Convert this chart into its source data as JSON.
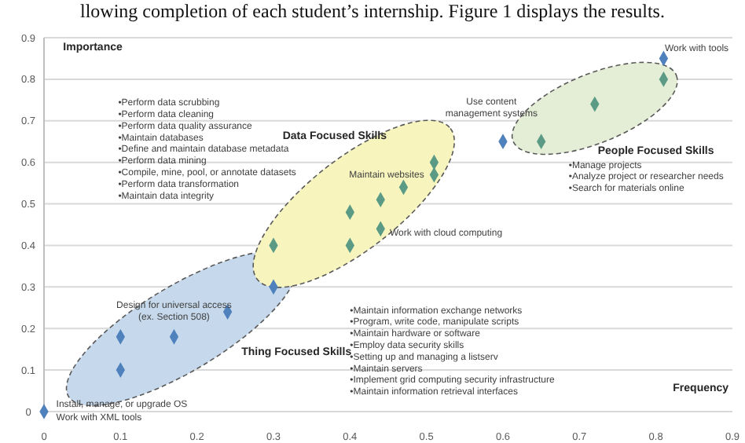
{
  "chart_data": {
    "type": "scatter",
    "xlabel": "Frequency",
    "ylabel": "Importance",
    "x": [
      0,
      0.1,
      0.1,
      0.17,
      0.24,
      0.3,
      0.6,
      0.81,
      0.3,
      0.4,
      0.4,
      0.44,
      0.44,
      0.47,
      0.51,
      0.51,
      0.65,
      0.72,
      0.81
    ],
    "values": [
      0,
      0.1,
      0.18,
      0.18,
      0.24,
      0.3,
      0.65,
      0.85,
      0.4,
      0.4,
      0.48,
      0.44,
      0.51,
      0.54,
      0.57,
      0.6,
      0.65,
      0.74,
      0.8
    ],
    "colors": [
      "#4f81bd",
      "#4f81bd",
      "#4f81bd",
      "#4f81bd",
      "#4f81bd",
      "#4f81bd",
      "#4f81bd",
      "#4f81bd",
      "#5b9b86",
      "#5b9b86",
      "#5b9b86",
      "#5b9b86",
      "#5b9b86",
      "#5b9b86",
      "#5b9b86",
      "#5b9b86",
      "#5b9b86",
      "#5b9b86",
      "#5b9b86"
    ],
    "xlim": [
      0,
      0.9
    ],
    "ylim": [
      0,
      0.9
    ],
    "xticks": [
      0,
      0.1,
      0.2,
      0.3,
      0.4,
      0.5,
      0.6,
      0.7,
      0.8,
      0.9
    ],
    "yticks": [
      0,
      0.1,
      0.2,
      0.3,
      0.4,
      0.5,
      0.6,
      0.7,
      0.8,
      0.9
    ],
    "grid": "y",
    "marker": "diamond",
    "annotations": [
      "llowing completion of each student’s internship. Figure 1 displays the results.",
      "Data Focused Skills",
      "People Focused Skills",
      "Thing Focused Skills",
      "•Perform data scrubbing",
      "•Perform data cleaning",
      "•Perform data quality assurance",
      "•Maintain databases",
      "•Define and maintain database metadata",
      "•Perform data mining",
      "•Compile, mine, pool, or annotate datasets",
      "•Perform data transformation",
      "•Maintain data integrity",
      "•Manage projects",
      "•Analyze project or researcher needs",
      "•Search for materials online",
      "•Maintain information exchange networks",
      "•Program, write code, manipulate scripts",
      "•Maintain hardware or software",
      "•Employ data security skills",
      "•Setting up and managing a listserv",
      "•Maintain servers",
      "•Implement grid computing security infrastructure",
      "•Maintain information retrieval interfaces",
      "Work with tools",
      "Use content management systems",
      "Maintain websites",
      "Work with cloud computing",
      "Design for universal access (ex. Section 508)",
      "Install, manage, or upgrade OS",
      "Work with XML tools"
    ]
  }
}
